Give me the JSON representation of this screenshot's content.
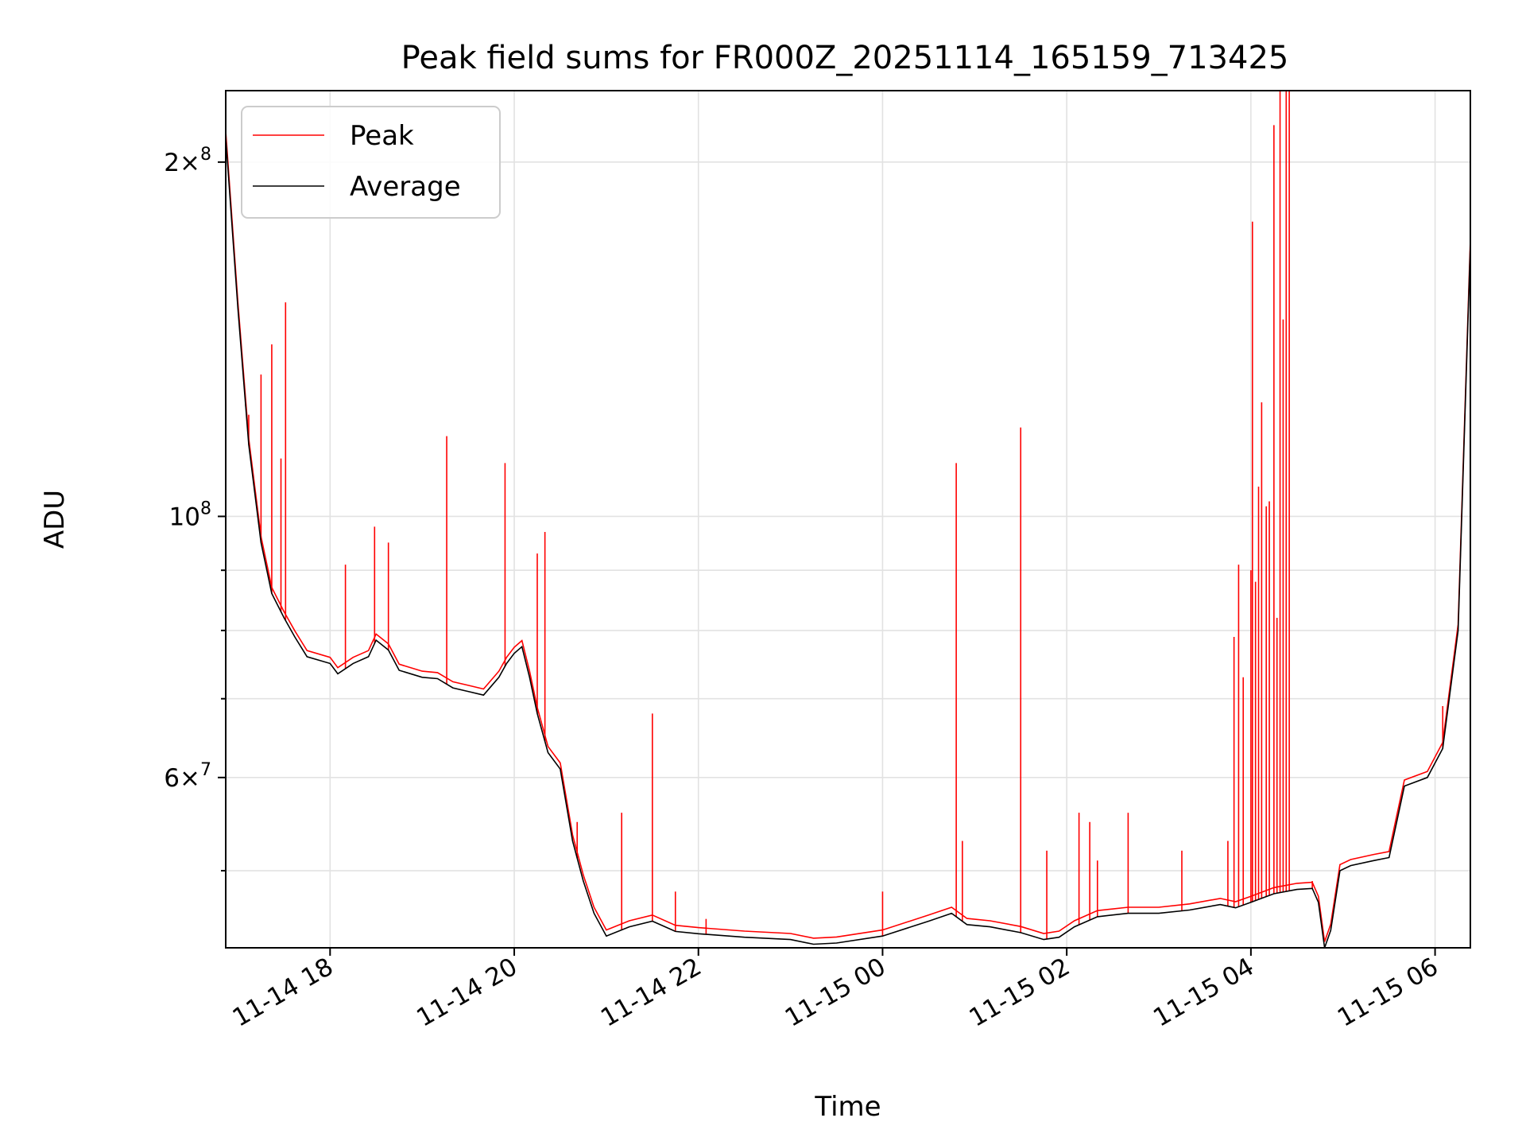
{
  "chart_data": {
    "type": "line",
    "title": "Peak field sums for FR000Z_20251114_165159_713425",
    "xlabel": "Time",
    "ylabel": "ADU",
    "yscale": "log",
    "ylim": [
      43000000,
      230000000
    ],
    "xlim": [
      "2025-11-14T16:52",
      "2025-11-15T06:23"
    ],
    "grid": true,
    "legend_position": "upper-left",
    "x_ticks": [
      {
        "t": "2025-11-14T18:00",
        "label": "11-14 18"
      },
      {
        "t": "2025-11-14T20:00",
        "label": "11-14 20"
      },
      {
        "t": "2025-11-14T22:00",
        "label": "11-14 22"
      },
      {
        "t": "2025-11-15T00:00",
        "label": "11-15 00"
      },
      {
        "t": "2025-11-15T02:00",
        "label": "11-15 02"
      },
      {
        "t": "2025-11-15T04:00",
        "label": "11-15 04"
      },
      {
        "t": "2025-11-15T06:00",
        "label": "11-15 06"
      }
    ],
    "y_ticks": [
      {
        "v": 60000000,
        "mant": "6",
        "exp": "7",
        "times": true
      },
      {
        "v": 100000000,
        "mant": "10",
        "exp": "8",
        "times": false
      },
      {
        "v": 200000000,
        "mant": "2",
        "exp": "8",
        "times": true
      }
    ],
    "y_minor_ticks": [
      50000000,
      70000000,
      80000000,
      90000000
    ],
    "series": [
      {
        "name": "Average",
        "color": "#000000",
        "points": [
          [
            "2025-11-14T16:52",
            210000000
          ],
          [
            "2025-11-14T17:00",
            150000000
          ],
          [
            "2025-11-14T17:07",
            115000000
          ],
          [
            "2025-11-14T17:15",
            95000000
          ],
          [
            "2025-11-14T17:22",
            86000000
          ],
          [
            "2025-11-14T17:30",
            82000000
          ],
          [
            "2025-11-14T17:37",
            79000000
          ],
          [
            "2025-11-14T17:45",
            76000000
          ],
          [
            "2025-11-14T18:00",
            75000000
          ],
          [
            "2025-11-14T18:05",
            73500000
          ],
          [
            "2025-11-14T18:15",
            75000000
          ],
          [
            "2025-11-14T18:25",
            76000000
          ],
          [
            "2025-11-14T18:30",
            78500000
          ],
          [
            "2025-11-14T18:38",
            77000000
          ],
          [
            "2025-11-14T18:45",
            74000000
          ],
          [
            "2025-11-14T19:00",
            73000000
          ],
          [
            "2025-11-14T19:10",
            72800000
          ],
          [
            "2025-11-14T19:20",
            71500000
          ],
          [
            "2025-11-14T19:30",
            71000000
          ],
          [
            "2025-11-14T19:40",
            70500000
          ],
          [
            "2025-11-14T19:50",
            73000000
          ],
          [
            "2025-11-14T19:55",
            75000000
          ],
          [
            "2025-11-14T20:00",
            76500000
          ],
          [
            "2025-11-14T20:05",
            77500000
          ],
          [
            "2025-11-14T20:10",
            73000000
          ],
          [
            "2025-11-14T20:15",
            68000000
          ],
          [
            "2025-11-14T20:22",
            63000000
          ],
          [
            "2025-11-14T20:30",
            61000000
          ],
          [
            "2025-11-14T20:38",
            53000000
          ],
          [
            "2025-11-14T20:45",
            49000000
          ],
          [
            "2025-11-14T20:52",
            46000000
          ],
          [
            "2025-11-14T21:00",
            44000000
          ],
          [
            "2025-11-14T21:15",
            44800000
          ],
          [
            "2025-11-14T21:30",
            45300000
          ],
          [
            "2025-11-14T21:45",
            44400000
          ],
          [
            "2025-11-14T22:00",
            44200000
          ],
          [
            "2025-11-14T22:30",
            43900000
          ],
          [
            "2025-11-14T23:00",
            43700000
          ],
          [
            "2025-11-14T23:15",
            43300000
          ],
          [
            "2025-11-14T23:30",
            43400000
          ],
          [
            "2025-11-15T00:00",
            44000000
          ],
          [
            "2025-11-15T00:30",
            45300000
          ],
          [
            "2025-11-15T00:45",
            46000000
          ],
          [
            "2025-11-15T00:55",
            45000000
          ],
          [
            "2025-11-15T01:10",
            44800000
          ],
          [
            "2025-11-15T01:30",
            44300000
          ],
          [
            "2025-11-15T01:45",
            43700000
          ],
          [
            "2025-11-15T01:55",
            43900000
          ],
          [
            "2025-11-15T02:05",
            44800000
          ],
          [
            "2025-11-15T02:20",
            45700000
          ],
          [
            "2025-11-15T02:40",
            46000000
          ],
          [
            "2025-11-15T03:00",
            46000000
          ],
          [
            "2025-11-15T03:20",
            46300000
          ],
          [
            "2025-11-15T03:40",
            46800000
          ],
          [
            "2025-11-15T03:50",
            46500000
          ],
          [
            "2025-11-15T04:00",
            47000000
          ],
          [
            "2025-11-15T04:15",
            47800000
          ],
          [
            "2025-11-15T04:30",
            48200000
          ],
          [
            "2025-11-15T04:40",
            48300000
          ],
          [
            "2025-11-15T04:44",
            47000000
          ],
          [
            "2025-11-15T04:48",
            43000000
          ],
          [
            "2025-11-15T04:52",
            44500000
          ],
          [
            "2025-11-15T04:58",
            50000000
          ],
          [
            "2025-11-15T05:05",
            50500000
          ],
          [
            "2025-11-15T05:20",
            51000000
          ],
          [
            "2025-11-15T05:30",
            51300000
          ],
          [
            "2025-11-15T05:35",
            55000000
          ],
          [
            "2025-11-15T05:40",
            59000000
          ],
          [
            "2025-11-15T05:55",
            60000000
          ],
          [
            "2025-11-15T06:05",
            63500000
          ],
          [
            "2025-11-15T06:15",
            80000000
          ],
          [
            "2025-11-15T06:23",
            170000000
          ]
        ]
      },
      {
        "name": "Peak",
        "color": "#ff0000",
        "spikes": [
          [
            "2025-11-14T17:05",
            125000000
          ],
          [
            "2025-11-14T17:07",
            122000000
          ],
          [
            "2025-11-14T17:15",
            132000000
          ],
          [
            "2025-11-14T17:22",
            140000000
          ],
          [
            "2025-11-14T17:28",
            112000000
          ],
          [
            "2025-11-14T17:31",
            152000000
          ],
          [
            "2025-11-14T18:10",
            91000000
          ],
          [
            "2025-11-14T18:29",
            98000000
          ],
          [
            "2025-11-14T18:38",
            95000000
          ],
          [
            "2025-11-14T19:16",
            117000000
          ],
          [
            "2025-11-14T19:54",
            111000000
          ],
          [
            "2025-11-14T20:15",
            93000000
          ],
          [
            "2025-11-14T20:20",
            97000000
          ],
          [
            "2025-11-14T20:41",
            55000000
          ],
          [
            "2025-11-14T21:10",
            56000000
          ],
          [
            "2025-11-14T21:30",
            68000000
          ],
          [
            "2025-11-14T21:45",
            48000000
          ],
          [
            "2025-11-14T22:05",
            45500000
          ],
          [
            "2025-11-15T00:00",
            48000000
          ],
          [
            "2025-11-15T00:48",
            111000000
          ],
          [
            "2025-11-15T00:52",
            53000000
          ],
          [
            "2025-11-15T01:30",
            119000000
          ],
          [
            "2025-11-15T01:47",
            52000000
          ],
          [
            "2025-11-15T02:08",
            56000000
          ],
          [
            "2025-11-15T02:15",
            55000000
          ],
          [
            "2025-11-15T02:20",
            51000000
          ],
          [
            "2025-11-15T02:40",
            56000000
          ],
          [
            "2025-11-15T03:15",
            52000000
          ],
          [
            "2025-11-15T03:45",
            53000000
          ],
          [
            "2025-11-15T03:49",
            79000000
          ],
          [
            "2025-11-15T03:52",
            91000000
          ],
          [
            "2025-11-15T03:55",
            73000000
          ],
          [
            "2025-11-15T04:00",
            90000000
          ],
          [
            "2025-11-15T04:01",
            178000000
          ],
          [
            "2025-11-15T04:03",
            88000000
          ],
          [
            "2025-11-15T04:05",
            106000000
          ],
          [
            "2025-11-15T04:07",
            125000000
          ],
          [
            "2025-11-15T04:10",
            102000000
          ],
          [
            "2025-11-15T04:12",
            103000000
          ],
          [
            "2025-11-15T04:15",
            215000000
          ],
          [
            "2025-11-15T04:17",
            82000000
          ],
          [
            "2025-11-15T04:19",
            230000000
          ],
          [
            "2025-11-15T04:21",
            147000000
          ],
          [
            "2025-11-15T04:23",
            230000000
          ],
          [
            "2025-11-15T04:25",
            230000000
          ],
          [
            "2025-11-15T04:40",
            49000000
          ],
          [
            "2025-11-15T06:05",
            69000000
          ]
        ]
      }
    ]
  }
}
